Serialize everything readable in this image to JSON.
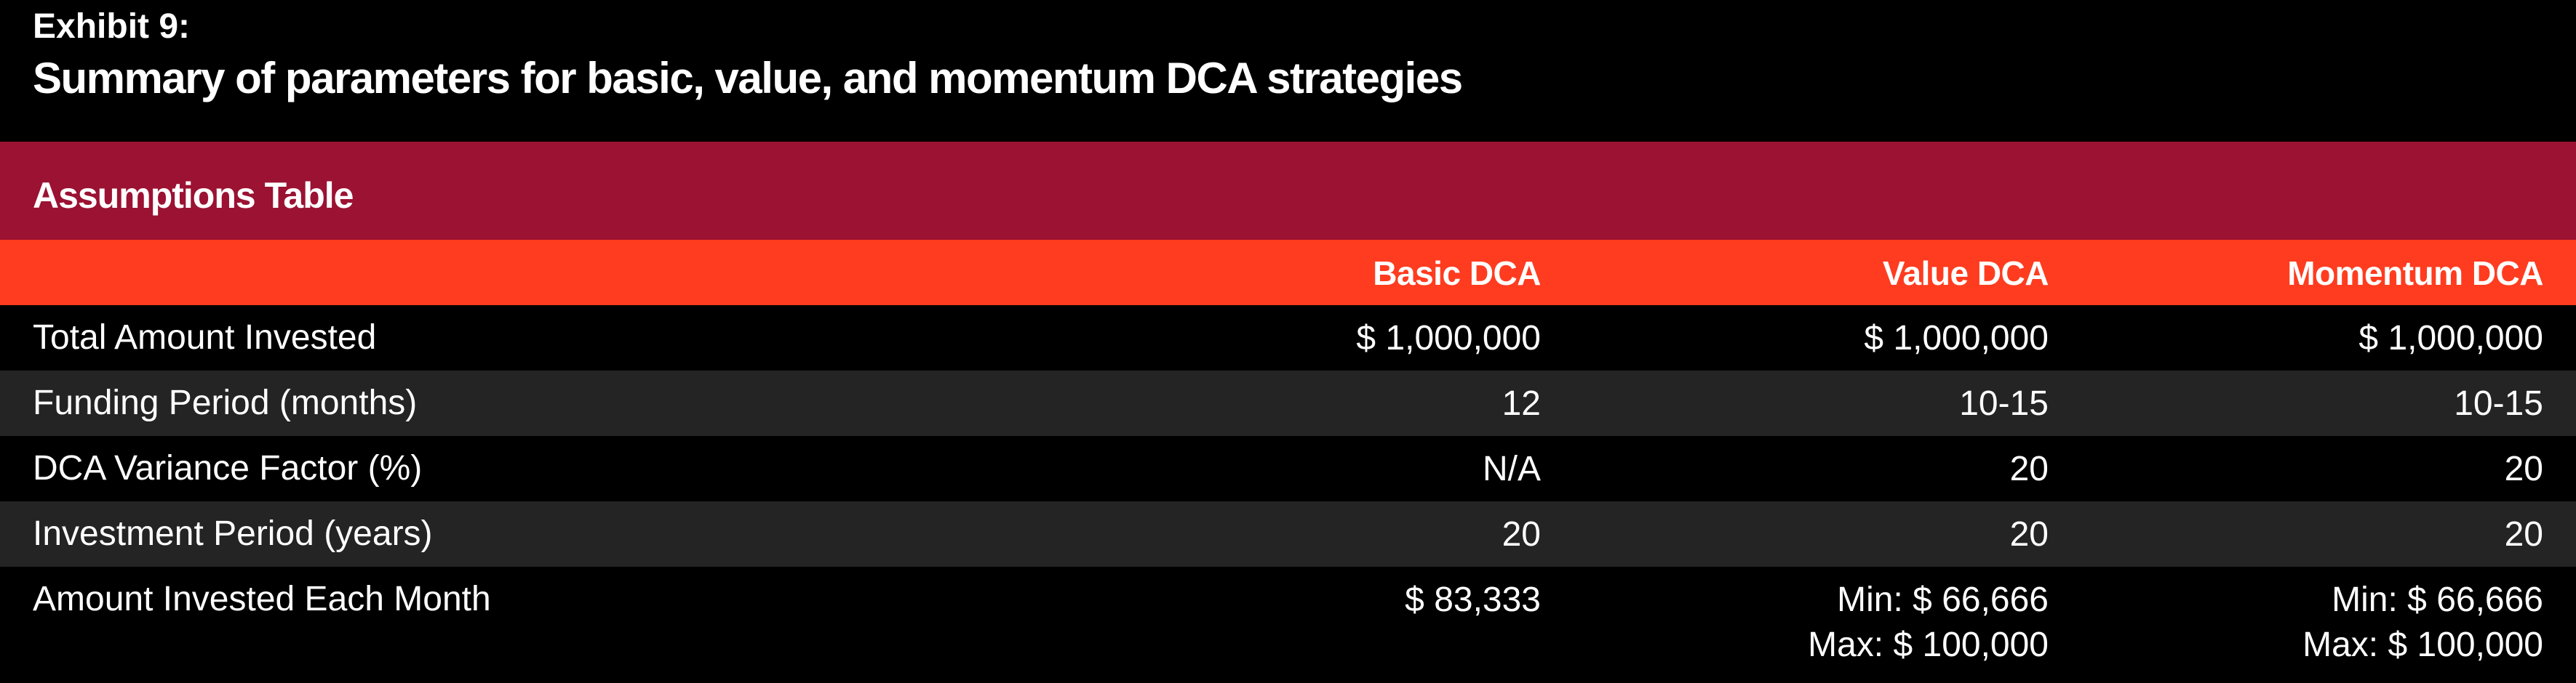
{
  "exhibit": {
    "label": "Exhibit 9:",
    "title": "Summary of parameters for basic, value, and momentum DCA strategies"
  },
  "table": {
    "title": "Assumptions Table",
    "columns": [
      "Basic DCA",
      "Value DCA",
      "Momentum DCA"
    ],
    "rows": [
      {
        "label": "Total Amount Invested",
        "basic": "$ 1,000,000",
        "value": "$ 1,000,000",
        "momentum": "$ 1,000,000"
      },
      {
        "label": "Funding Period (months)",
        "basic": "12",
        "value": "10-15",
        "momentum": "10-15"
      },
      {
        "label": "DCA Variance Factor (%)",
        "basic": "N/A",
        "value": "20",
        "momentum": "20"
      },
      {
        "label": "Investment Period (years)",
        "basic": "20",
        "value": "20",
        "momentum": "20"
      },
      {
        "label": "Amount Invested Each Month",
        "basic": "$ 83,333",
        "value_min": "Min: $ 66,666",
        "value_max": "Max: $ 100,000",
        "momentum_min": "Min: $ 66,666",
        "momentum_max": "Max: $ 100,000"
      }
    ]
  },
  "colors": {
    "background": "#000000",
    "section_bar": "#9b1232",
    "column_header_bar": "#ff3c1f",
    "alt_row": "#242424",
    "text": "#ffffff"
  }
}
